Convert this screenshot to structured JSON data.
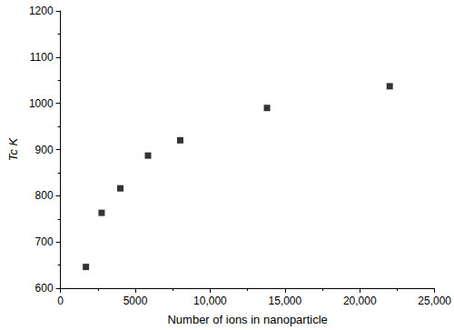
{
  "chart_data": {
    "type": "scatter",
    "x_label": "Number of ions in nanoparticle",
    "y_label": "Tc K",
    "x": [
      1700,
      2750,
      4000,
      5850,
      8000,
      13800,
      22000
    ],
    "values": [
      646,
      763,
      816,
      887,
      920,
      990,
      1037
    ],
    "color": "#000000",
    "marker": "square",
    "xlim": [
      0,
      25000
    ],
    "xticks": [
      0,
      5000,
      {
        "value": 10000,
        "label": "10,000"
      },
      {
        "value": 15000,
        "label": "15,000"
      },
      {
        "value": 20000,
        "label": "20,000"
      },
      {
        "value": 25000,
        "label": "25,000"
      }
    ],
    "ylim": [
      600,
      1200
    ],
    "yticks": [
      600,
      700,
      800,
      900,
      1000,
      1100,
      1200
    ],
    "grid": false
  }
}
